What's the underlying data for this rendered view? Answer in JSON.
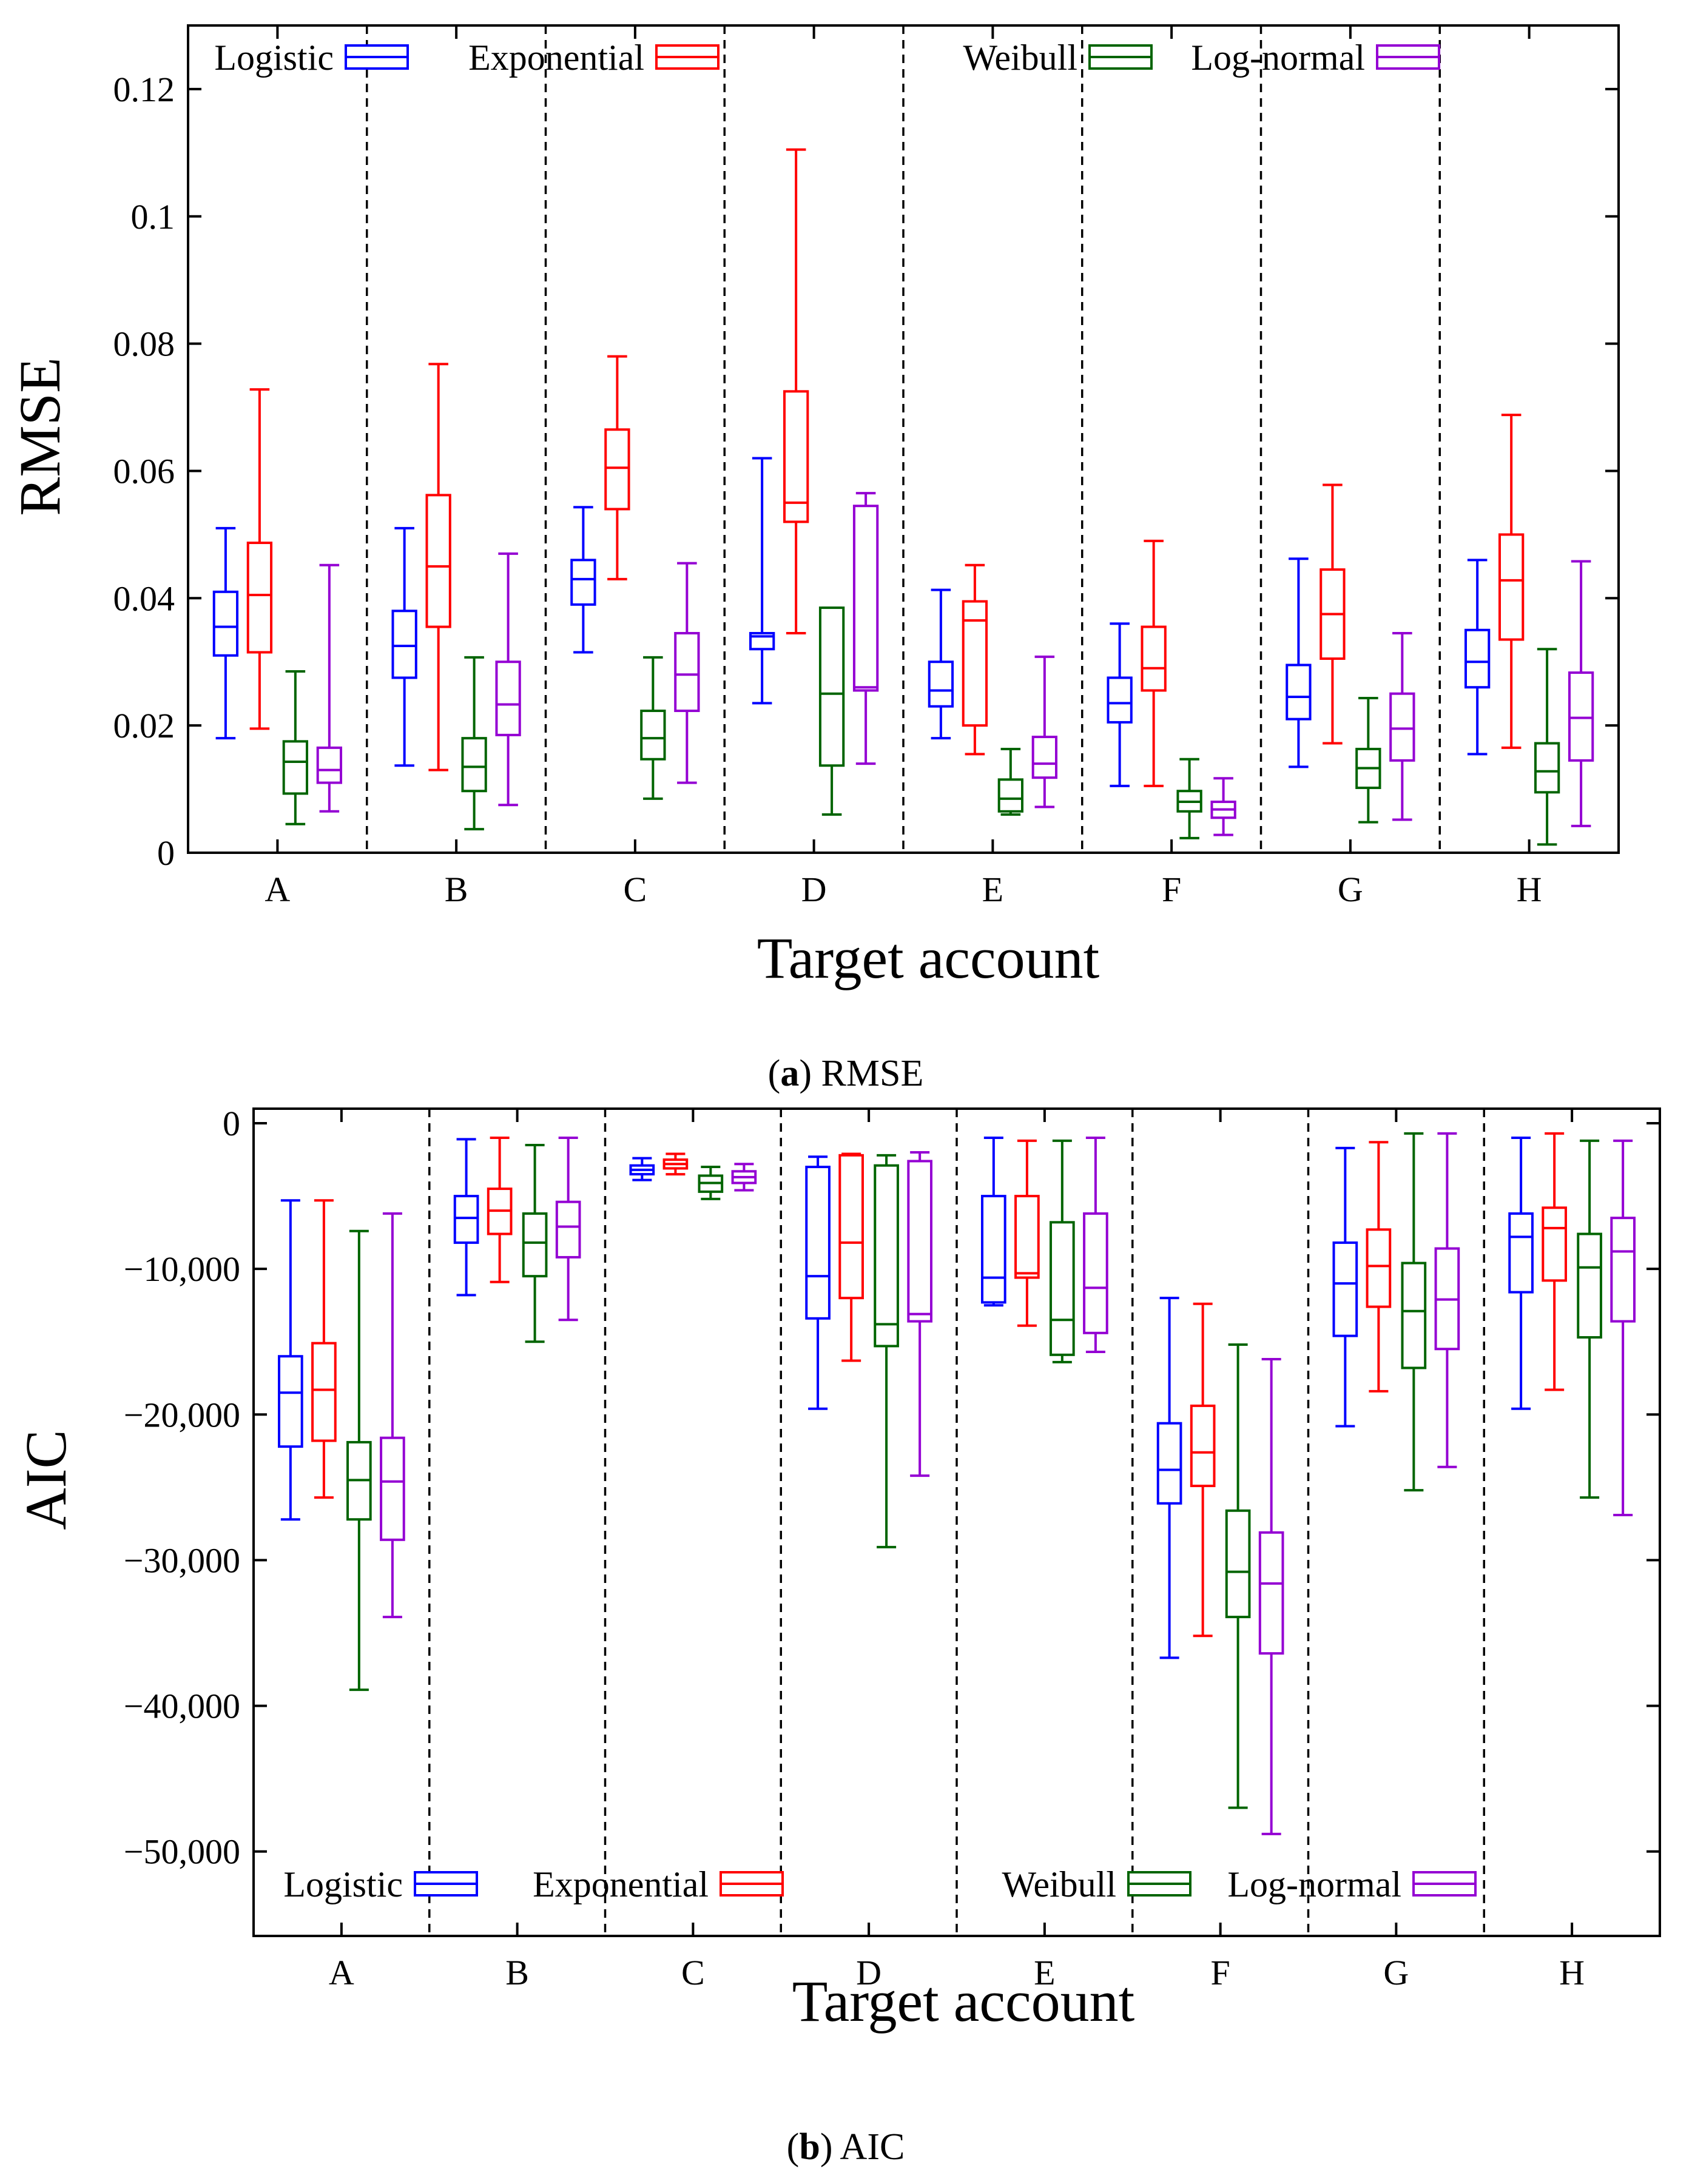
{
  "colors": {
    "logistic": "#0000ff",
    "exponential": "#ff0000",
    "weibull": "#006400",
    "lognormal": "#9400d3"
  },
  "chart_data": [
    {
      "type": "box",
      "id": "rmse",
      "caption": {
        "letter": "a",
        "text": "RMSE"
      },
      "title": "",
      "xlabel": "Target account",
      "ylabel": "RMSE",
      "ylim": [
        0,
        0.13
      ],
      "yticks": [
        0,
        0.02,
        0.04,
        0.06,
        0.08,
        0.1,
        0.12
      ],
      "ytick_labels": [
        "0",
        "0.02",
        "0.04",
        "0.06",
        "0.08",
        "0.1",
        "0.12"
      ],
      "categories": [
        "A",
        "B",
        "C",
        "D",
        "E",
        "F",
        "G",
        "H"
      ],
      "legend_position": "top",
      "series": [
        {
          "name": "Logistic",
          "color_key": "logistic",
          "boxes": [
            [
              0.018,
              0.031,
              0.0355,
              0.041,
              0.051
            ],
            [
              0.0137,
              0.0275,
              0.0325,
              0.038,
              0.051
            ],
            [
              0.0315,
              0.039,
              0.043,
              0.046,
              0.0543
            ],
            [
              0.0235,
              0.032,
              0.034,
              0.0345,
              0.062
            ],
            [
              0.018,
              0.023,
              0.0255,
              0.03,
              0.0413
            ],
            [
              0.0105,
              0.0205,
              0.0235,
              0.0275,
              0.036
            ],
            [
              0.0135,
              0.021,
              0.0245,
              0.0295,
              0.0462
            ],
            [
              0.0155,
              0.026,
              0.03,
              0.035,
              0.046
            ]
          ]
        },
        {
          "name": "Exponential",
          "color_key": "exponential",
          "boxes": [
            [
              0.0195,
              0.0315,
              0.0405,
              0.0487,
              0.0728
            ],
            [
              0.013,
              0.0355,
              0.045,
              0.0562,
              0.0768
            ],
            [
              0.043,
              0.054,
              0.0605,
              0.0665,
              0.078
            ],
            [
              0.0345,
              0.052,
              0.055,
              0.0725,
              0.1105
            ],
            [
              0.0155,
              0.02,
              0.0365,
              0.0395,
              0.0452
            ],
            [
              0.0105,
              0.0255,
              0.029,
              0.0355,
              0.049
            ],
            [
              0.0172,
              0.0305,
              0.0375,
              0.0445,
              0.0578
            ],
            [
              0.0165,
              0.0335,
              0.0428,
              0.05,
              0.0688
            ]
          ]
        },
        {
          "name": "Weibull",
          "color_key": "weibull",
          "boxes": [
            [
              0.0045,
              0.0093,
              0.0143,
              0.0175,
              0.0285
            ],
            [
              0.0037,
              0.0097,
              0.0135,
              0.018,
              0.0307
            ],
            [
              0.0085,
              0.0147,
              0.018,
              0.0223,
              0.0307
            ],
            [
              0.006,
              0.0137,
              0.025,
              0.0385,
              0.0385
            ],
            [
              0.006,
              0.0065,
              0.0085,
              0.0115,
              0.0163
            ],
            [
              0.0023,
              0.0065,
              0.008,
              0.0097,
              0.0147
            ],
            [
              0.0048,
              0.0102,
              0.0133,
              0.0163,
              0.0243
            ],
            [
              0.0013,
              0.0095,
              0.0128,
              0.0172,
              0.032
            ]
          ]
        },
        {
          "name": "Log-normal",
          "color_key": "lognormal",
          "boxes": [
            [
              0.0065,
              0.011,
              0.013,
              0.0165,
              0.0452
            ],
            [
              0.0075,
              0.0185,
              0.0233,
              0.03,
              0.047
            ],
            [
              0.011,
              0.0223,
              0.028,
              0.0345,
              0.0455
            ],
            [
              0.014,
              0.0255,
              0.026,
              0.0545,
              0.0565
            ],
            [
              0.0072,
              0.0118,
              0.014,
              0.0182,
              0.0308
            ],
            [
              0.0028,
              0.0055,
              0.0068,
              0.008,
              0.0117
            ],
            [
              0.0052,
              0.0145,
              0.0195,
              0.025,
              0.0345
            ],
            [
              0.0042,
              0.0145,
              0.0212,
              0.0283,
              0.0458
            ]
          ]
        }
      ]
    },
    {
      "type": "box",
      "id": "aic",
      "caption": {
        "letter": "b",
        "text": "AIC"
      },
      "title": "",
      "xlabel": "Target account",
      "ylabel": "AIC",
      "ylim": [
        -55800,
        1000
      ],
      "yticks": [
        0,
        -10000,
        -20000,
        -30000,
        -40000,
        -50000
      ],
      "ytick_labels": [
        "0",
        "−10,000",
        "−20,000",
        "−30,000",
        "−40,000",
        "−50,000"
      ],
      "categories": [
        "A",
        "B",
        "C",
        "D",
        "E",
        "F",
        "G",
        "H"
      ],
      "legend_position": "bottom",
      "series": [
        {
          "name": "Logistic",
          "color_key": "logistic",
          "boxes": [
            [
              -27200,
              -22200,
              -18500,
              -16000,
              -5300
            ],
            [
              -11800,
              -8200,
              -6500,
              -5000,
              -1100
            ],
            [
              -3900,
              -3500,
              -3200,
              -2900,
              -2400
            ],
            [
              -19600,
              -13400,
              -10500,
              -3000,
              -2300
            ],
            [
              -12500,
              -12300,
              -10600,
              -5000,
              -1000
            ],
            [
              -36700,
              -26100,
              -23800,
              -20600,
              -12000
            ],
            [
              -20800,
              -14600,
              -11000,
              -8200,
              -1700
            ],
            [
              -19600,
              -11600,
              -7800,
              -6200,
              -1000
            ]
          ]
        },
        {
          "name": "Exponential",
          "color_key": "exponential",
          "boxes": [
            [
              -25700,
              -21800,
              -18300,
              -15100,
              -5300
            ],
            [
              -10900,
              -7600,
              -6000,
              -4500,
              -1000
            ],
            [
              -3500,
              -3100,
              -2800,
              -2500,
              -2100
            ],
            [
              -16300,
              -12000,
              -8200,
              -2200,
              -2100
            ],
            [
              -13900,
              -10600,
              -10300,
              -5000,
              -1200
            ],
            [
              -35200,
              -24900,
              -22600,
              -19400,
              -12400
            ],
            [
              -18400,
              -12600,
              -9800,
              -7300,
              -1300
            ],
            [
              -18300,
              -10800,
              -7200,
              -5800,
              -700
            ]
          ]
        },
        {
          "name": "Weibull",
          "color_key": "weibull",
          "boxes": [
            [
              -38900,
              -27200,
              -24500,
              -21900,
              -7400
            ],
            [
              -15000,
              -10500,
              -8200,
              -6200,
              -1500
            ],
            [
              -5200,
              -4700,
              -4100,
              -3600,
              -3000
            ],
            [
              -29100,
              -15300,
              -13800,
              -2900,
              -2200
            ],
            [
              -16400,
              -15900,
              -13500,
              -6800,
              -1200
            ],
            [
              -47000,
              -33900,
              -30800,
              -26600,
              -15200
            ],
            [
              -25200,
              -16800,
              -12900,
              -9600,
              -700
            ],
            [
              -25700,
              -14700,
              -9900,
              -7600,
              -1200
            ]
          ]
        },
        {
          "name": "Log-normal",
          "color_key": "lognormal",
          "boxes": [
            [
              -33900,
              -28600,
              -24600,
              -21600,
              -6200
            ],
            [
              -13500,
              -9200,
              -7100,
              -5400,
              -1000
            ],
            [
              -4600,
              -4100,
              -3700,
              -3300,
              -2800
            ],
            [
              -24200,
              -13600,
              -13100,
              -2600,
              -2000
            ],
            [
              -15700,
              -14400,
              -11300,
              -6200,
              -1000
            ],
            [
              -48800,
              -36400,
              -31600,
              -28100,
              -16200
            ],
            [
              -23600,
              -15500,
              -12100,
              -8600,
              -700
            ],
            [
              -26900,
              -13600,
              -8800,
              -6500,
              -1200
            ]
          ]
        }
      ]
    }
  ]
}
